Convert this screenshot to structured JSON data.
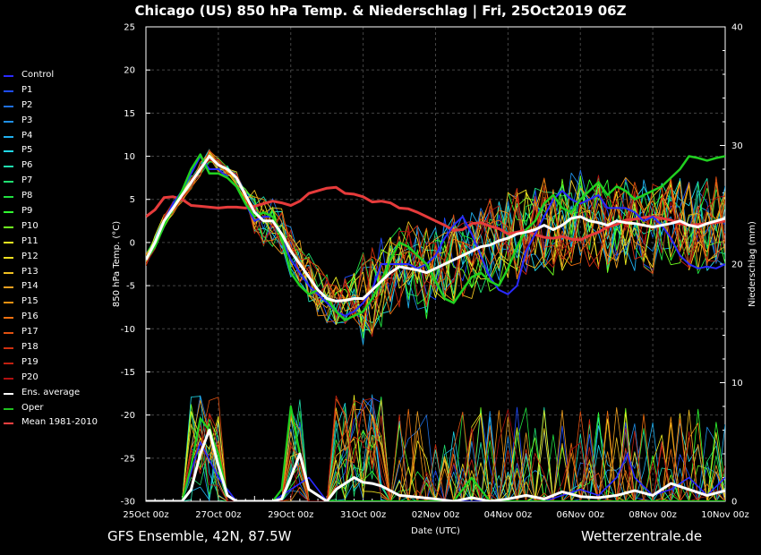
{
  "title": "Chicago  (US)  850 hPa Temp. & Niederschlag | Fri, 25Oct2019 06Z",
  "footer_left": "GFS Ensemble, 42N, 87.5W",
  "footer_right": "Wetterzentrale.de",
  "chart_data": {
    "type": "line",
    "xlabel": "Date (UTC)",
    "ylabel": "850 hPa Temp. (°C)",
    "y2label": "Niederschlag (mm)",
    "xticks": [
      "25Oct 00z",
      "27Oct 00z",
      "29Oct 00z",
      "31Oct 00z",
      "02Nov 00z",
      "04Nov 00z",
      "06Nov 00z",
      "08Nov 00z",
      "10Nov 00z"
    ],
    "xlim_days": [
      0,
      16
    ],
    "ylim": [
      -30,
      25
    ],
    "yticks": [
      -30,
      -25,
      -20,
      -15,
      -10,
      -5,
      0,
      5,
      10,
      15,
      20,
      25
    ],
    "y2lim": [
      0,
      40
    ],
    "y2ticks": [
      0,
      10,
      20,
      30,
      40
    ],
    "grid": true,
    "legend_position": "left",
    "legend": [
      {
        "name": "Control",
        "color": "#2a2aff"
      },
      {
        "name": "P1",
        "color": "#1e4cff"
      },
      {
        "name": "P2",
        "color": "#1f6fe0"
      },
      {
        "name": "P3",
        "color": "#1f8fe6"
      },
      {
        "name": "P4",
        "color": "#20b0f0"
      },
      {
        "name": "P5",
        "color": "#20d8e8"
      },
      {
        "name": "P6",
        "color": "#20e0b0"
      },
      {
        "name": "P7",
        "color": "#20e070"
      },
      {
        "name": "P8",
        "color": "#20e040"
      },
      {
        "name": "P9",
        "color": "#30ff30"
      },
      {
        "name": "P10",
        "color": "#70ff20"
      },
      {
        "name": "P11",
        "color": "#f0f020"
      },
      {
        "name": "P12",
        "color": "#f0e020"
      },
      {
        "name": "P13",
        "color": "#f0c020"
      },
      {
        "name": "P14",
        "color": "#f0a020"
      },
      {
        "name": "P15",
        "color": "#f09010"
      },
      {
        "name": "P16",
        "color": "#f07010"
      },
      {
        "name": "P17",
        "color": "#e05010"
      },
      {
        "name": "P18",
        "color": "#d03010"
      },
      {
        "name": "P19",
        "color": "#c02010"
      },
      {
        "name": "P20",
        "color": "#b01010"
      },
      {
        "name": "Ens. average",
        "color": "#ffffff"
      },
      {
        "name": "Oper",
        "color": "#20c020"
      },
      {
        "name": "Mean 1981-2010",
        "color": "#ff4040"
      }
    ],
    "series": {
      "mean_1981_2010": {
        "x": [
          0,
          0.25,
          0.5,
          0.75,
          1,
          1.25,
          1.5,
          1.75,
          2,
          2.25,
          2.5,
          2.75,
          3,
          3.25,
          3.5,
          3.75,
          4,
          4.25,
          4.5,
          4.75,
          5,
          5.25,
          5.5,
          5.75,
          6,
          6.25,
          6.5,
          6.75,
          7,
          7.25,
          7.5,
          7.75,
          8,
          8.25,
          8.5,
          8.75,
          9,
          9.25,
          9.5,
          9.75,
          10,
          10.25,
          10.5,
          10.75,
          11,
          11.25,
          11.5,
          11.75,
          12,
          12.25,
          12.5,
          12.75,
          13,
          13.25,
          13.5,
          13.75,
          14,
          14.25,
          14.5,
          14.75,
          15,
          15.25,
          15.5,
          15.75,
          16
        ],
        "y": [
          3,
          3.8,
          5.2,
          5.3,
          5.0,
          4.3,
          4.2,
          4.1,
          4.0,
          4.1,
          4.1,
          4.0,
          4.2,
          4.5,
          4.8,
          4.6,
          4.3,
          4.8,
          5.7,
          6.0,
          6.3,
          6.4,
          5.7,
          5.6,
          5.3,
          4.7,
          4.8,
          4.6,
          4.0,
          3.9,
          3.5,
          3.0,
          2.5,
          2.0,
          1.4,
          1.5,
          2.2,
          2.3,
          1.9,
          1.6,
          1.0,
          1.2,
          1.4,
          0.9,
          0.6,
          0.5,
          0.7,
          0.4,
          0.3,
          0.8,
          1.2,
          1.8,
          2.1,
          2.6,
          2.7,
          2.9,
          3.0,
          2.8,
          2.6,
          2.2,
          2.0,
          2.1,
          2.2,
          2.3,
          2.5
        ]
      },
      "ens_average": {
        "x": [
          0,
          0.25,
          0.5,
          0.75,
          1,
          1.25,
          1.5,
          1.75,
          2,
          2.25,
          2.5,
          2.75,
          3,
          3.25,
          3.5,
          3.75,
          4,
          4.25,
          4.5,
          4.75,
          5,
          5.25,
          5.5,
          5.75,
          6,
          6.25,
          6.5,
          6.75,
          7,
          7.25,
          7.5,
          7.75,
          8,
          8.25,
          8.5,
          8.75,
          9,
          9.25,
          9.5,
          9.75,
          10,
          10.25,
          10.5,
          10.75,
          11,
          11.25,
          11.5,
          11.75,
          12,
          12.25,
          12.5,
          12.75,
          13,
          13.25,
          13.5,
          13.75,
          14,
          14.25,
          14.5,
          14.75,
          15,
          15.25,
          15.5,
          15.75,
          16
        ],
        "y": [
          -2,
          0,
          2.5,
          4.0,
          5.5,
          7.0,
          8.5,
          10.0,
          9.0,
          8.5,
          7.5,
          5.5,
          3.5,
          2.5,
          2.5,
          1.0,
          -1.0,
          -2.5,
          -4.0,
          -5.5,
          -6.5,
          -6.8,
          -6.7,
          -6.5,
          -6.5,
          -5.5,
          -4.5,
          -3.5,
          -2.8,
          -3.0,
          -3.2,
          -3.5,
          -3.0,
          -2.5,
          -2.0,
          -1.5,
          -1.0,
          -0.5,
          -0.3,
          0.2,
          0.5,
          1.0,
          1.2,
          1.5,
          2.0,
          1.5,
          2.0,
          2.8,
          3.0,
          2.5,
          2.3,
          2.0,
          2.5,
          2.3,
          2.2,
          2.0,
          1.8,
          2.0,
          2.2,
          2.5,
          2.0,
          1.8,
          2.2,
          2.5,
          2.8
        ]
      },
      "oper": {
        "x": [
          0,
          0.25,
          0.5,
          0.75,
          1,
          1.25,
          1.5,
          1.75,
          2,
          2.25,
          2.5,
          2.75,
          3,
          3.25,
          3.5,
          3.75,
          4,
          4.25,
          4.5,
          4.75,
          5,
          5.25,
          5.5,
          5.75,
          6,
          6.25,
          6.5,
          6.75,
          7,
          7.25,
          7.5,
          7.75,
          8,
          8.25,
          8.5,
          8.75,
          9,
          9.25,
          9.5,
          9.75,
          10,
          10.25,
          10.5,
          10.75,
          11,
          11.25,
          11.5,
          11.75,
          12,
          12.25,
          12.5,
          12.75,
          13,
          13.25,
          13.5,
          13.75,
          14,
          14.25,
          14.5,
          14.75,
          15,
          15.25,
          15.5,
          15.75,
          16
        ],
        "y": [
          -2,
          -0.5,
          2.0,
          4.0,
          6.0,
          8.5,
          10.2,
          8.0,
          8.0,
          7.5,
          6.5,
          4.5,
          3.0,
          3.5,
          3.0,
          0.5,
          -3.5,
          -5.0,
          -6.0,
          -5.5,
          -6.5,
          -8.0,
          -9.0,
          -8.5,
          -8.0,
          -6.5,
          -4.5,
          -2.0,
          0,
          -0.5,
          -1.5,
          -2.5,
          -4.5,
          -6.5,
          -7.0,
          -5.5,
          -4.0,
          -3.5,
          -4.5,
          -5.0,
          -3.0,
          -0.5,
          1.5,
          2.5,
          4.5,
          5.5,
          4.0,
          3.5,
          5.0,
          6.0,
          7.0,
          5.5,
          6.5,
          6.0,
          5.0,
          5.5,
          6.0,
          6.5,
          7.5,
          8.5,
          10.0,
          9.8,
          9.5,
          9.8,
          10.0
        ]
      },
      "control": {
        "x": [
          0,
          0.25,
          0.5,
          0.75,
          1,
          1.25,
          1.5,
          1.75,
          2,
          2.25,
          2.5,
          2.75,
          3,
          3.25,
          3.5,
          3.75,
          4,
          4.25,
          4.5,
          4.75,
          5,
          5.25,
          5.5,
          5.75,
          6,
          6.25,
          6.5,
          6.75,
          7,
          7.25,
          7.5,
          7.75,
          8,
          8.25,
          8.5,
          8.75,
          9,
          9.25,
          9.5,
          9.75,
          10,
          10.25,
          10.5,
          10.75,
          11,
          11.25,
          11.5,
          11.75,
          12,
          12.25,
          12.5,
          12.75,
          13,
          13.25,
          13.5,
          13.75,
          14,
          14.25,
          14.5,
          14.75,
          15,
          15.25,
          15.5,
          15.75,
          16
        ],
        "y": [
          -2,
          0,
          2.5,
          4.5,
          6.0,
          8.0,
          10.0,
          8.5,
          8.5,
          7.5,
          6.5,
          4.5,
          2.5,
          3.0,
          3.0,
          0.5,
          -2.0,
          -3.5,
          -5.0,
          -6.0,
          -7.0,
          -8.0,
          -8.5,
          -8.0,
          -7.0,
          -5.5,
          -2.5,
          -2.5,
          -2.5,
          -2.5,
          -3.0,
          -2.5,
          -1.5,
          0.5,
          2.0,
          3.0,
          1.0,
          -1.5,
          -4.0,
          -5.5,
          -6.0,
          -5.0,
          -1.0,
          1.0,
          3.0,
          5.0,
          6.0,
          5.0,
          4.5,
          5.0,
          5.5,
          4.0,
          4.0,
          4.0,
          3.5,
          2.5,
          3.0,
          2.0,
          0.5,
          -1.5,
          -2.5,
          -3.0,
          -2.8,
          -3.0,
          -2.5
        ]
      },
      "precip_ens_average": {
        "x": [
          0,
          0.5,
          1,
          1.25,
          1.5,
          1.75,
          2,
          2.25,
          2.5,
          3,
          3.5,
          3.75,
          4,
          4.25,
          4.5,
          4.75,
          5,
          5.25,
          5.5,
          5.75,
          6,
          6.25,
          6.5,
          7,
          8,
          8.5,
          9,
          9.5,
          10,
          10.5,
          11,
          11.5,
          12,
          12.5,
          13,
          13.5,
          14,
          14.5,
          15,
          15.5,
          16
        ],
        "y": [
          0,
          0,
          0,
          1,
          4,
          6,
          3,
          0.5,
          0,
          0,
          0,
          0.2,
          2,
          4,
          1,
          0.5,
          0,
          1,
          1.5,
          2,
          1.6,
          1.5,
          1.3,
          0.5,
          0.2,
          0,
          0.3,
          0,
          0.2,
          0.5,
          0.2,
          0.8,
          0.4,
          0.3,
          0.5,
          0.9,
          0.5,
          1.5,
          1,
          0.5,
          0.9
        ]
      },
      "precip_oper": {
        "x": [
          0,
          0.5,
          1,
          1.25,
          1.5,
          1.75,
          2,
          2.25,
          2.5,
          3,
          3.5,
          3.75,
          4,
          4.25,
          4.5,
          4.75,
          5,
          5.5,
          6,
          6.5,
          7,
          7.5,
          8,
          8.5,
          9,
          9.25,
          9.5,
          10,
          11,
          12,
          13,
          14,
          15,
          16
        ],
        "y": [
          0,
          0,
          0,
          3,
          7,
          6,
          4,
          0.5,
          0,
          0,
          0,
          1,
          8,
          4,
          1,
          0.5,
          0,
          0,
          0,
          0,
          0,
          0,
          0,
          0,
          2,
          1,
          0,
          0,
          0,
          0,
          0,
          0,
          0,
          0
        ]
      },
      "precip_control": {
        "x": [
          0,
          1,
          1.5,
          2,
          2.5,
          3,
          3.5,
          4,
          4.5,
          5,
          5.5,
          6,
          7,
          8,
          9,
          10,
          11,
          11.5,
          12,
          12.5,
          13,
          13.3,
          13.5,
          14,
          14.5,
          15,
          15.5,
          16
        ],
        "y": [
          0,
          0,
          5,
          2,
          0,
          0,
          0,
          1,
          2,
          0,
          0,
          0,
          0,
          0,
          0,
          0,
          0,
          0.5,
          1,
          0.5,
          2,
          4,
          2,
          0.5,
          1,
          2,
          0.5,
          2
        ]
      }
    }
  }
}
